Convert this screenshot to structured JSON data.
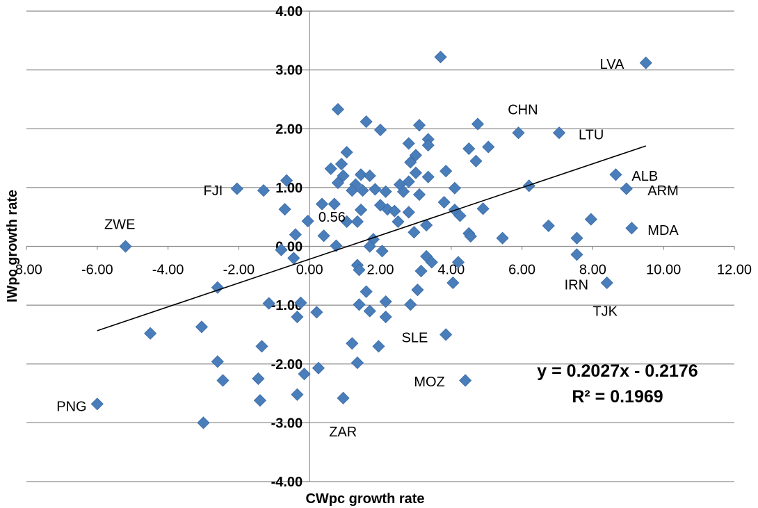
{
  "chart_data": {
    "type": "scatter",
    "title": "",
    "xlabel": "CWpc growth rate",
    "ylabel": "IWpc growth rate",
    "xlim": [
      -8,
      12
    ],
    "ylim": [
      -4,
      4
    ],
    "x_ticks": [
      "-8.00",
      "-6.00",
      "-4.00",
      "-2.00",
      "0.00",
      "2.00",
      "4.00",
      "6.00",
      "8.00",
      "10.00",
      "12.00"
    ],
    "y_ticks": [
      "4.00",
      "3.00",
      "2.00",
      "1.00",
      "0.00",
      "-1.00",
      "-2.00",
      "-3.00",
      "-4.00"
    ],
    "grid": "horizontal",
    "marker_color": "#4a7ebb",
    "trendline": {
      "slope": 0.2027,
      "intercept": -0.2176,
      "x_range": [
        -6,
        9.5
      ]
    },
    "equation": "y = 0.2027x - 0.2176",
    "r_squared": "R² = 0.1969",
    "points": [
      [
        9.5,
        3.12
      ],
      [
        3.7,
        3.22
      ],
      [
        0.8,
        2.33
      ],
      [
        1.6,
        2.12
      ],
      [
        2.0,
        1.98
      ],
      [
        3.1,
        2.06
      ],
      [
        4.75,
        2.08
      ],
      [
        5.9,
        1.93
      ],
      [
        7.05,
        1.93
      ],
      [
        3.35,
        1.82
      ],
      [
        2.8,
        1.75
      ],
      [
        3.35,
        1.72
      ],
      [
        4.5,
        1.66
      ],
      [
        5.05,
        1.69
      ],
      [
        1.05,
        1.6
      ],
      [
        3.0,
        1.55
      ],
      [
        4.7,
        1.45
      ],
      [
        2.85,
        1.43
      ],
      [
        0.6,
        1.32
      ],
      [
        0.9,
        1.4
      ],
      [
        3.85,
        1.28
      ],
      [
        1.45,
        1.22
      ],
      [
        1.7,
        1.2
      ],
      [
        3.0,
        1.25
      ],
      [
        3.35,
        1.18
      ],
      [
        -0.65,
        1.12
      ],
      [
        0.95,
        1.2
      ],
      [
        0.8,
        1.08
      ],
      [
        1.3,
        1.05
      ],
      [
        2.55,
        1.05
      ],
      [
        2.8,
        1.1
      ],
      [
        6.2,
        1.03
      ],
      [
        8.65,
        1.22
      ],
      [
        8.95,
        0.98
      ],
      [
        -2.05,
        0.98
      ],
      [
        -1.3,
        0.95
      ],
      [
        1.2,
        0.95
      ],
      [
        1.5,
        0.95
      ],
      [
        1.85,
        0.97
      ],
      [
        2.15,
        0.93
      ],
      [
        2.65,
        0.93
      ],
      [
        3.1,
        0.88
      ],
      [
        4.1,
        0.99
      ],
      [
        0.35,
        0.72
      ],
      [
        0.7,
        0.72
      ],
      [
        1.45,
        0.62
      ],
      [
        2.0,
        0.7
      ],
      [
        2.2,
        0.63
      ],
      [
        2.4,
        0.6
      ],
      [
        2.8,
        0.58
      ],
      [
        3.8,
        0.75
      ],
      [
        4.1,
        0.62
      ],
      [
        4.9,
        0.64
      ],
      [
        -0.7,
        0.63
      ],
      [
        4.25,
        0.52
      ],
      [
        1.05,
        0.42
      ],
      [
        1.35,
        0.42
      ],
      [
        2.5,
        0.42
      ],
      [
        -0.05,
        0.43
      ],
      [
        3.3,
        0.36
      ],
      [
        6.75,
        0.35
      ],
      [
        7.95,
        0.46
      ],
      [
        9.1,
        0.31
      ],
      [
        -0.4,
        0.2
      ],
      [
        0.4,
        0.18
      ],
      [
        2.95,
        0.24
      ],
      [
        4.5,
        0.22
      ],
      [
        4.55,
        0.17
      ],
      [
        5.45,
        0.14
      ],
      [
        7.55,
        0.14
      ],
      [
        1.8,
        0.12
      ],
      [
        -5.2,
        0.0
      ],
      [
        0.75,
        0.01
      ],
      [
        1.7,
        0.0
      ],
      [
        -0.8,
        -0.06
      ],
      [
        2.05,
        -0.08
      ],
      [
        3.3,
        -0.17
      ],
      [
        7.55,
        -0.14
      ],
      [
        -0.45,
        -0.2
      ],
      [
        3.45,
        -0.27
      ],
      [
        4.2,
        -0.27
      ],
      [
        1.35,
        -0.32
      ],
      [
        1.4,
        -0.4
      ],
      [
        3.15,
        -0.42
      ],
      [
        -2.6,
        -0.7
      ],
      [
        1.6,
        -0.77
      ],
      [
        3.05,
        -0.74
      ],
      [
        4.05,
        -0.62
      ],
      [
        8.4,
        -0.62
      ],
      [
        -1.15,
        -0.97
      ],
      [
        -0.25,
        -0.96
      ],
      [
        1.4,
        -0.99
      ],
      [
        2.15,
        -0.94
      ],
      [
        2.85,
        -0.99
      ],
      [
        1.7,
        -1.1
      ],
      [
        0.2,
        -1.12
      ],
      [
        -0.35,
        -1.2
      ],
      [
        2.15,
        -1.2
      ],
      [
        -3.05,
        -1.37
      ],
      [
        -4.5,
        -1.48
      ],
      [
        3.85,
        -1.5
      ],
      [
        -1.35,
        -1.7
      ],
      [
        1.2,
        -1.65
      ],
      [
        1.95,
        -1.7
      ],
      [
        -2.6,
        -1.96
      ],
      [
        1.35,
        -1.98
      ],
      [
        0.25,
        -2.07
      ],
      [
        -0.15,
        -2.17
      ],
      [
        -2.45,
        -2.28
      ],
      [
        -1.45,
        -2.25
      ],
      [
        4.4,
        -2.28
      ],
      [
        -1.4,
        -2.62
      ],
      [
        -0.35,
        -2.52
      ],
      [
        0.95,
        -2.58
      ],
      [
        -6.0,
        -2.68
      ],
      [
        -3.0,
        -3.0
      ]
    ],
    "labels": [
      {
        "text": "LVA",
        "x": 8.2,
        "y": 3.1
      },
      {
        "text": "CHN",
        "x": 5.6,
        "y": 2.33
      },
      {
        "text": "LTU",
        "x": 7.6,
        "y": 1.9
      },
      {
        "text": "ALB",
        "x": 9.1,
        "y": 1.2
      },
      {
        "text": "ARM",
        "x": 9.55,
        "y": 0.95
      },
      {
        "text": "MDA",
        "x": 9.55,
        "y": 0.28
      },
      {
        "text": "FJI",
        "x": -3.0,
        "y": 0.95
      },
      {
        "text": "ZWE",
        "x": -5.8,
        "y": 0.38
      },
      {
        "text": "0.56",
        "x": 0.25,
        "y": 0.5
      },
      {
        "text": "IRN",
        "x": 7.2,
        "y": -0.65
      },
      {
        "text": "TJK",
        "x": 8.0,
        "y": -1.1
      },
      {
        "text": "SLE",
        "x": 2.6,
        "y": -1.55
      },
      {
        "text": "MOZ",
        "x": 2.95,
        "y": -2.3
      },
      {
        "text": "PNG",
        "x": -7.15,
        "y": -2.72
      },
      {
        "text": "ZAR",
        "x": 0.55,
        "y": -3.15
      }
    ]
  }
}
